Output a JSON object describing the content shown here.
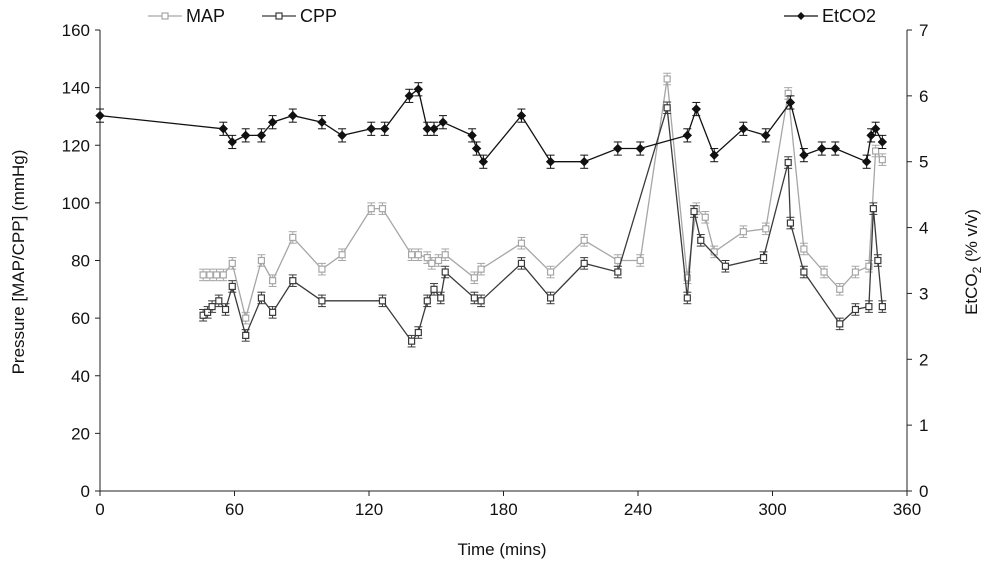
{
  "chart_data": {
    "type": "line",
    "title": "",
    "xlabel": "Time (mins)",
    "ylabel_left": "Pressure [MAP/CPP] (mmHg)",
    "ylabel_right": "EtCO2 (% v/v)",
    "xlim": [
      0,
      360
    ],
    "ylim_left": [
      0,
      160
    ],
    "ylim_right": [
      0,
      7
    ],
    "x_ticks": [
      0,
      60,
      120,
      180,
      240,
      300,
      360
    ],
    "y_ticks_left": [
      0,
      20,
      40,
      60,
      80,
      100,
      120,
      140,
      160
    ],
    "y_ticks_right": [
      0,
      1,
      2,
      3,
      4,
      5,
      6,
      7
    ],
    "grid": false,
    "legend_position": "top",
    "series": [
      {
        "name": "MAP",
        "axis": "left",
        "marker": "open-square",
        "color": "#a6a6a6",
        "x": [
          46,
          49,
          52,
          55,
          59,
          65,
          72,
          77,
          86,
          99,
          108,
          121,
          126,
          139,
          142,
          146,
          148,
          151,
          154,
          167,
          170,
          188,
          201,
          216,
          231,
          241,
          253,
          262,
          266,
          270,
          274,
          287,
          297,
          307,
          314,
          323,
          330,
          337,
          343,
          346,
          349
        ],
        "y": [
          75,
          75,
          75,
          75,
          79,
          60,
          80,
          73,
          88,
          77,
          82,
          98,
          98,
          82,
          82,
          81,
          79,
          80,
          82,
          74,
          77,
          86,
          76,
          87,
          80,
          80,
          143,
          74,
          98,
          95,
          83,
          90,
          91,
          138,
          84,
          76,
          70,
          76,
          78,
          118,
          115
        ],
        "error": 2
      },
      {
        "name": "CPP",
        "axis": "left",
        "marker": "open-square",
        "color": "#3a3a3a",
        "x": [
          46,
          48,
          50,
          53,
          56,
          59,
          65,
          72,
          77,
          86,
          99,
          126,
          139,
          142,
          146,
          149,
          152,
          154,
          167,
          170,
          188,
          201,
          216,
          231,
          253,
          262,
          265,
          268,
          279,
          296,
          307,
          308,
          314,
          330,
          337,
          343,
          345,
          347,
          349
        ],
        "y": [
          61,
          62,
          64,
          66,
          63,
          71,
          54,
          67,
          62,
          73,
          66,
          66,
          52,
          55,
          66,
          70,
          67,
          76,
          67,
          66,
          79,
          67,
          79,
          76,
          133,
          67,
          97,
          87,
          78,
          81,
          114,
          93,
          76,
          58,
          63,
          64,
          98,
          80,
          64
        ],
        "error": 2
      },
      {
        "name": "EtCO2",
        "axis": "right",
        "marker": "filled-diamond",
        "color": "#111111",
        "x": [
          0,
          55,
          59,
          65,
          72,
          77,
          86,
          99,
          108,
          121,
          127,
          138,
          142,
          146,
          149,
          153,
          166,
          168,
          171,
          188,
          201,
          216,
          231,
          241,
          262,
          266,
          274,
          287,
          297,
          308,
          314,
          322,
          328,
          342,
          344,
          346,
          349
        ],
        "y": [
          5.7,
          5.5,
          5.3,
          5.4,
          5.4,
          5.6,
          5.7,
          5.6,
          5.4,
          5.5,
          5.5,
          6.0,
          6.1,
          5.5,
          5.5,
          5.6,
          5.4,
          5.2,
          5.0,
          5.7,
          5.0,
          5.0,
          5.2,
          5.2,
          5.4,
          5.8,
          5.1,
          5.5,
          5.4,
          5.9,
          5.1,
          5.2,
          5.2,
          5.0,
          5.4,
          5.5,
          5.3
        ],
        "error": 0.1
      }
    ]
  }
}
